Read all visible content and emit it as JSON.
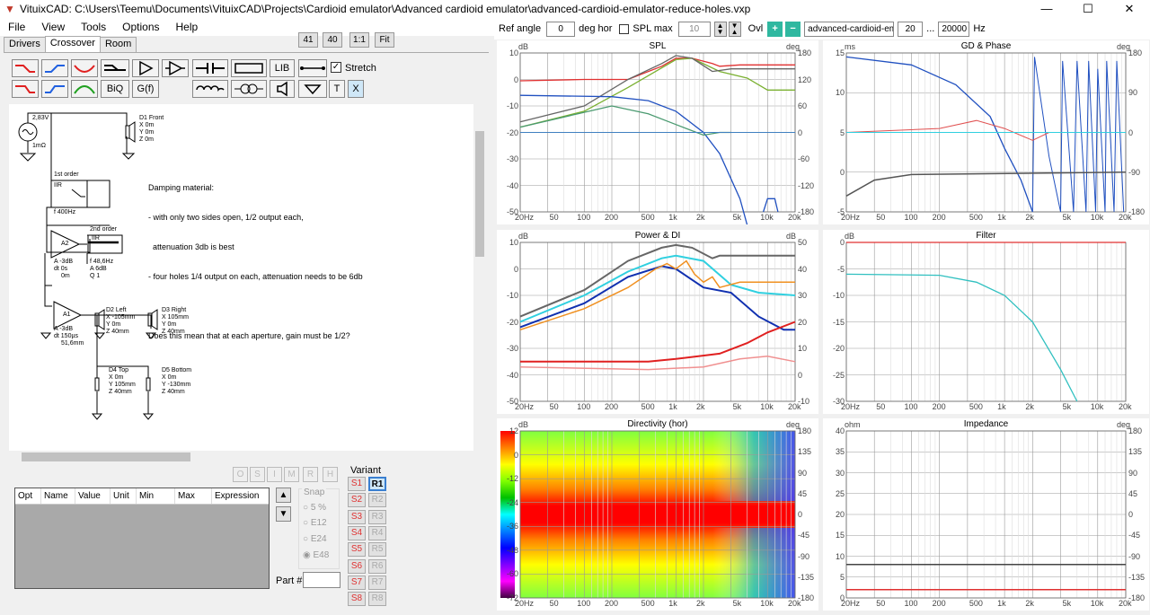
{
  "window": {
    "title": "VituixCAD: C:\\Users\\Teemu\\Documents\\VituixCAD\\Projects\\Cardioid emulator\\Advanced cardioid emulator\\advanced-cardioid-emulator-reduce-holes.vxp",
    "min": "—",
    "max": "☐",
    "close": "✕"
  },
  "menu": [
    "File",
    "View",
    "Tools",
    "Options",
    "Help"
  ],
  "tabs": [
    "Drivers",
    "Crossover",
    "Room"
  ],
  "zoom": {
    "z41": "41",
    "z40": "40",
    "z11": "1:1",
    "fit": "Fit"
  },
  "palette": {
    "lib": "LIB",
    "biq": "BiQ",
    "gf": "G(f)",
    "t": "T",
    "x": "X",
    "stretch": "Stretch"
  },
  "schematic": {
    "src_v": "2,83V",
    "src_r": "1mΩ",
    "d1": [
      "D1 Front",
      "X 0m",
      "Y 0m",
      "Z 0m"
    ],
    "note": [
      "Damping material:",
      "- with only two sides open, 1/2 output each,",
      "  attenuation 3db is best",
      "- four holes 1/4 output on each, attenuation needs to be 6db",
      "",
      "Does this mean that at each aperture, gain must be 1/2?"
    ],
    "iir1": [
      "1st order",
      "IIR",
      "f  400Hz"
    ],
    "iir2": [
      "2nd order",
      "IIR",
      "f  48,6Hz",
      "A  6dB",
      "Q  1"
    ],
    "a2": [
      "A2",
      "A -3dB",
      "dt 0s",
      "0m"
    ],
    "a1": [
      "A1",
      "A -3dB",
      "dt 150µs",
      "51,6mm"
    ],
    "d2": [
      "D2 Left",
      "X -105mm",
      "Y 0m",
      "Z 40mm"
    ],
    "d3": [
      "D3 Right",
      "X 105mm",
      "Y 0m",
      "Z 40mm"
    ],
    "d4": [
      "D4 Top",
      "X 0m",
      "Y 105mm",
      "Z 40mm"
    ],
    "d5": [
      "D5 Bottom",
      "X 0m",
      "Y -130mm",
      "Z 40mm"
    ]
  },
  "ost": [
    "O",
    "S",
    "I",
    "M",
    "R",
    "H"
  ],
  "optable": {
    "headers": [
      "Opt",
      "Name",
      "Value",
      "Unit",
      "Min",
      "Max",
      "Expression"
    ]
  },
  "snap": {
    "label": "Snap",
    "opts": [
      "5 %",
      "E12",
      "E24",
      "E48"
    ]
  },
  "part": {
    "label": "Part #"
  },
  "variant": {
    "label": "Variant",
    "s": [
      "S1",
      "S2",
      "S3",
      "S4",
      "S5",
      "S6",
      "S7",
      "S8"
    ],
    "r": [
      "R1",
      "R2",
      "R3",
      "R4",
      "R5",
      "R6",
      "R7",
      "R8"
    ]
  },
  "toolbar": {
    "ref_angle_lbl": "Ref angle",
    "ref_angle": "0",
    "deg_hor": "deg hor",
    "spl_max": "SPL max",
    "spl_val": "10",
    "ovl": "Ovl",
    "file": "advanced-cardioid-emul",
    "f1": "20",
    "dots": "...",
    "f2": "20000",
    "hz": "Hz"
  },
  "freq_ticks": [
    "20Hz",
    "50",
    "100",
    "200",
    "500",
    "1k",
    "2k",
    "5k",
    "10k",
    "20k"
  ],
  "plots": {
    "spl": {
      "title": "SPL",
      "lunit": "dB",
      "runit": "deg",
      "left": [
        "10",
        "0",
        "-10",
        "-20",
        "-30",
        "-40",
        "-50"
      ],
      "right": [
        "180",
        "120",
        "60",
        "0",
        "-60",
        "-120",
        "-180"
      ]
    },
    "gd": {
      "title": "GD & Phase",
      "lunit": "ms",
      "runit": "deg",
      "left": [
        "15",
        "10",
        "5",
        "0",
        "-5"
      ],
      "right": [
        "180",
        "90",
        "0",
        "-90",
        "-180"
      ]
    },
    "pow": {
      "title": "Power & DI",
      "lunit": "dB",
      "runit": "dB",
      "left": [
        "10",
        "0",
        "-10",
        "-20",
        "-30",
        "-40",
        "-50"
      ],
      "right": [
        "50",
        "40",
        "30",
        "20",
        "10",
        "0",
        "-10"
      ]
    },
    "filt": {
      "title": "Filter",
      "lunit": "dB",
      "runit": "",
      "left": [
        "0",
        "-5",
        "-10",
        "-15",
        "-20",
        "-25",
        "-30"
      ],
      "right": []
    },
    "dir": {
      "title": "Directivity (hor)",
      "lunit": "dB",
      "runit": "deg",
      "left": [
        "12",
        "0",
        "-12",
        "-24",
        "-36",
        "-48",
        "-60",
        "-72"
      ],
      "right": [
        "180",
        "135",
        "90",
        "45",
        "0",
        "-45",
        "-90",
        "-135",
        "-180"
      ]
    },
    "imp": {
      "title": "Impedance",
      "lunit": "ohm",
      "runit": "deg",
      "left": [
        "40",
        "35",
        "30",
        "25",
        "20",
        "15",
        "10",
        "5",
        "0"
      ],
      "right": [
        "180",
        "135",
        "90",
        "45",
        "0",
        "-45",
        "-90",
        "-135",
        "-180"
      ]
    }
  }
}
